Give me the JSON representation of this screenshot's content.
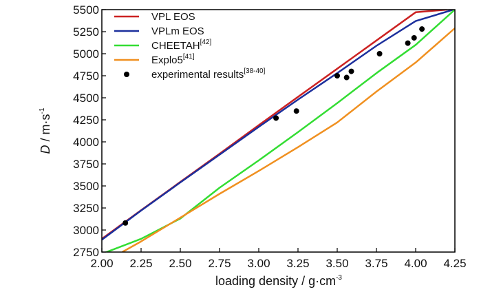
{
  "chart_data": {
    "type": "line",
    "xlabel": "loading density / g·cm",
    "xlabel_sup": "-3",
    "ylabel_italic": "D",
    "ylabel_rest": " / m·s",
    "ylabel_sup": "-1",
    "xlim": [
      2.0,
      4.25
    ],
    "ylim": [
      2750,
      5500
    ],
    "xticks": [
      "2.00",
      "2.25",
      "2.50",
      "2.75",
      "3.00",
      "3.25",
      "3.50",
      "3.75",
      "4.00",
      "4.25"
    ],
    "yticks": [
      "2750",
      "3000",
      "3250",
      "3500",
      "3750",
      "4000",
      "4250",
      "4500",
      "4750",
      "5000",
      "5250",
      "5500"
    ],
    "grid": false,
    "legend_position": "top-left",
    "series": [
      {
        "name": "VPL EOS",
        "sup": "",
        "style": "line",
        "color": "#cc2222",
        "x": [
          2.0,
          2.25,
          2.5,
          2.75,
          3.0,
          3.25,
          3.5,
          3.75,
          4.0,
          4.2
        ],
        "y": [
          2900,
          3225,
          3545,
          3865,
          4190,
          4510,
          4830,
          5150,
          5470,
          5500
        ]
      },
      {
        "name": "VPLm EOS",
        "sup": "",
        "style": "line",
        "color": "#1c2f9c",
        "x": [
          2.0,
          2.25,
          2.5,
          2.75,
          3.0,
          3.25,
          3.5,
          3.75,
          4.0,
          4.24
        ],
        "y": [
          2890,
          3220,
          3540,
          3855,
          4170,
          4480,
          4780,
          5090,
          5370,
          5500
        ]
      },
      {
        "name": "CHEETAH",
        "sup": "[42]",
        "style": "line",
        "color": "#33dd33",
        "x": [
          2.0,
          2.25,
          2.5,
          2.75,
          3.0,
          3.25,
          3.5,
          3.75,
          4.0,
          4.25
        ],
        "y": [
          2730,
          2900,
          3130,
          3480,
          3790,
          4110,
          4440,
          4780,
          5100,
          5500
        ]
      },
      {
        "name": "Explo5",
        "sup": "[41]",
        "style": "line",
        "color": "#f09020",
        "x": [
          2.13,
          2.25,
          2.5,
          2.75,
          3.0,
          3.25,
          3.5,
          3.75,
          4.0,
          4.25
        ],
        "y": [
          2750,
          2870,
          3140,
          3410,
          3670,
          3940,
          4220,
          4570,
          4900,
          5290
        ]
      },
      {
        "name": "experimental results",
        "sup": "[38-40]",
        "style": "scatter",
        "color": "#000000",
        "x": [
          2.15,
          3.11,
          3.24,
          3.5,
          3.56,
          3.59,
          3.77,
          3.95,
          3.99,
          4.04
        ],
        "y": [
          3080,
          4270,
          4350,
          4750,
          4730,
          4800,
          5000,
          5120,
          5180,
          5280
        ]
      }
    ]
  }
}
